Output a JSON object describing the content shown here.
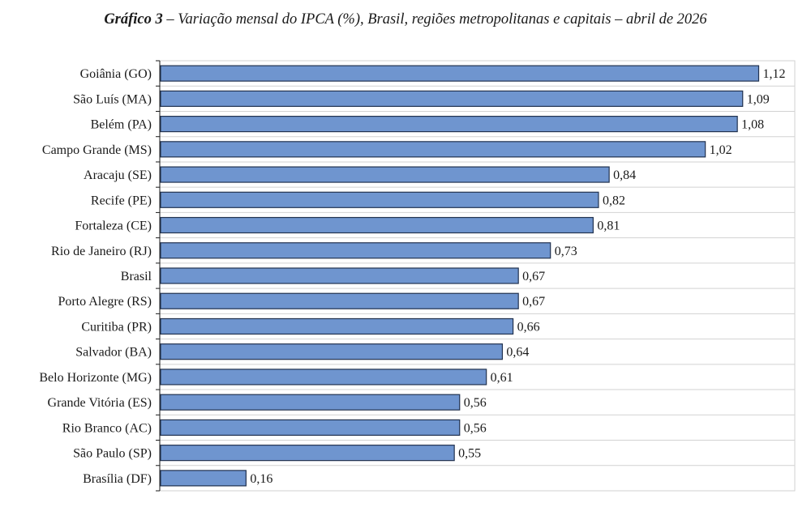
{
  "title": {
    "lead": "Gráfico 3",
    "dash": " – ",
    "text": "Variação mensal do IPCA (%), Brasil, regiões metropolitanas e capitais – abril de 2026"
  },
  "colors": {
    "bar_fill": "#6f95cf",
    "bar_stroke": "#22324f",
    "grid": "#d2d2d2",
    "axis": "#1a1a1a",
    "text": "#1a1a1a"
  },
  "chart_data": {
    "type": "bar",
    "orientation": "horizontal",
    "title": "Variação mensal do IPCA (%), Brasil, regiões metropolitanas e capitais – abril de 2026",
    "xlabel": "",
    "ylabel": "",
    "xlim": [
      0,
      1.2
    ],
    "grid": true,
    "legend": "none",
    "data_labels": true,
    "categories": [
      "Goiânia (GO)",
      "São Luís (MA)",
      "Belém (PA)",
      "Campo Grande (MS)",
      "Aracaju (SE)",
      "Recife (PE)",
      "Fortaleza (CE)",
      "Rio de Janeiro (RJ)",
      "Brasil",
      "Porto Alegre (RS)",
      "Curitiba (PR)",
      "Salvador (BA)",
      "Belo Horizonte (MG)",
      "Grande Vitória (ES)",
      "Rio Branco (AC)",
      "São Paulo (SP)",
      "Brasília (DF)"
    ],
    "values": [
      1.12,
      1.09,
      1.08,
      1.02,
      0.84,
      0.82,
      0.81,
      0.73,
      0.67,
      0.67,
      0.66,
      0.64,
      0.61,
      0.56,
      0.56,
      0.55,
      0.16
    ],
    "value_labels": [
      "1,12",
      "1,09",
      "1,08",
      "1,02",
      "0,84",
      "0,82",
      "0,81",
      "0,73",
      "0,67",
      "0,67",
      "0,66",
      "0,64",
      "0,61",
      "0,56",
      "0,56",
      "0,55",
      "0,16"
    ]
  }
}
